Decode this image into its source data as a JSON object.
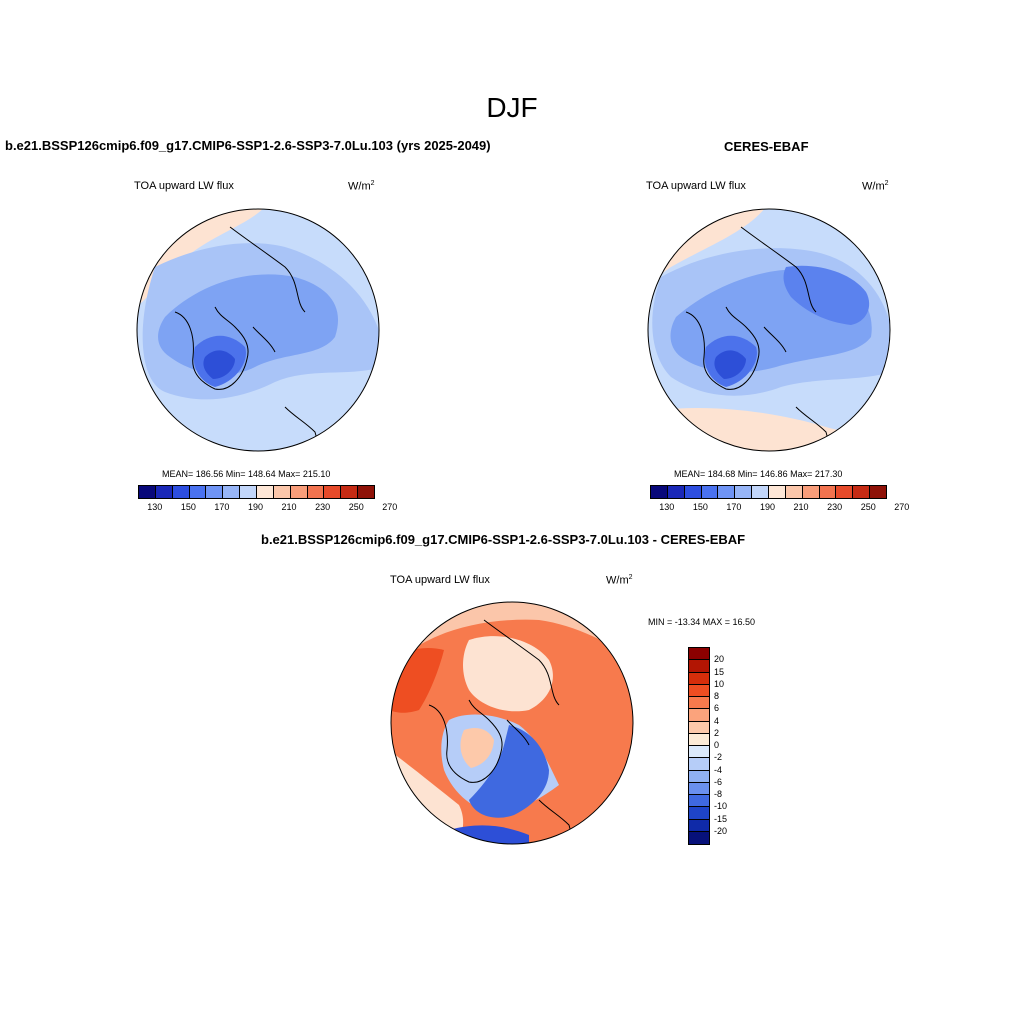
{
  "figure": {
    "title": "DJF"
  },
  "panels": {
    "model": {
      "title": "b.e21.BSSP126cmip6.f09_g17.CMIP6-SSP1-2.6-SSP3-7.0Lu.103 (yrs 2025-2049)",
      "variable": "TOA upward LW flux",
      "unit_base": "W/m",
      "unit_exp": "2",
      "stats": "MEAN= 186.56  Min= 148.64  Max= 215.10"
    },
    "obs": {
      "title": "CERES-EBAF",
      "variable": "TOA upward LW flux",
      "unit_base": "W/m",
      "unit_exp": "2",
      "stats": "MEAN= 184.68  Min= 146.86  Max= 217.30"
    },
    "diff": {
      "title": "b.e21.BSSP126cmip6.f09_g17.CMIP6-SSP1-2.6-SSP3-7.0Lu.103 - CERES-EBAF",
      "variable": "TOA upward LW flux",
      "unit_base": "W/m",
      "unit_exp": "2",
      "stats": "MIN = -13.34 MAX =  16.50"
    }
  },
  "colorbars": {
    "abs_colors": [
      "#08087a",
      "#1a28b8",
      "#2d4ee0",
      "#4a72f0",
      "#6f94f5",
      "#97b5f7",
      "#c2d6fa",
      "#fde6d6",
      "#fbc6aa",
      "#f89d7a",
      "#f2734f",
      "#e64a2a",
      "#c52b14",
      "#8f1208"
    ],
    "abs_ticks": [
      "130",
      "150",
      "170",
      "190",
      "210",
      "230",
      "250",
      "270"
    ],
    "diff_colors": [
      "#8b0000",
      "#b21503",
      "#d62e0b",
      "#ee4e22",
      "#f77a4d",
      "#fba37c",
      "#fdc9aa",
      "#fdebd6",
      "#dbe9fb",
      "#b6cdf8",
      "#8fb0f3",
      "#6a90ee",
      "#3f69e0",
      "#1e44c8",
      "#0f2aa8",
      "#07117a"
    ],
    "diff_ticks": [
      "20",
      "15",
      "10",
      "8",
      "6",
      "4",
      "2",
      "0",
      "-2",
      "-4",
      "-6",
      "-8",
      "-10",
      "-15",
      "-20"
    ]
  }
}
